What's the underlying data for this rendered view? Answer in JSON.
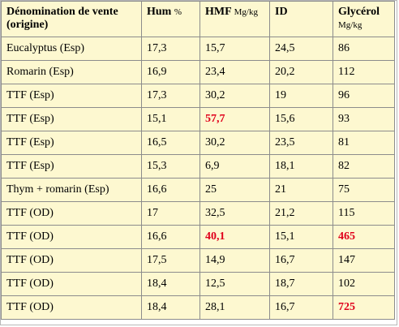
{
  "table": {
    "headers": {
      "denomination": "Dénomination de vente (origine)",
      "hum": "Hum",
      "hum_unit": "%",
      "hmf": "HMF",
      "hmf_unit": "Mg/kg",
      "id": "ID",
      "glycerol": "Glycérol",
      "glycerol_unit": "Mg/kg"
    },
    "highlight_color": "#e0001b",
    "rows": [
      {
        "name": "Eucalyptus (Esp)",
        "hum": "17,3",
        "hmf": "15,7",
        "id": "24,5",
        "glycerol": "86",
        "hmf_highlight": false,
        "glycerol_highlight": false
      },
      {
        "name": "Romarin (Esp)",
        "hum": "16,9",
        "hmf": "23,4",
        "id": "20,2",
        "glycerol": "112",
        "hmf_highlight": false,
        "glycerol_highlight": false
      },
      {
        "name": "TTF (Esp)",
        "hum": "17,3",
        "hmf": "30,2",
        "id": "19",
        "glycerol": "96",
        "hmf_highlight": false,
        "glycerol_highlight": false
      },
      {
        "name": "TTF (Esp)",
        "hum": "15,1",
        "hmf": "57,7",
        "id": "15,6",
        "glycerol": "93",
        "hmf_highlight": true,
        "glycerol_highlight": false
      },
      {
        "name": "TTF (Esp)",
        "hum": "16,5",
        "hmf": "30,2",
        "id": "23,5",
        "glycerol": "81",
        "hmf_highlight": false,
        "glycerol_highlight": false
      },
      {
        "name": "TTF (Esp)",
        "hum": "15,3",
        "hmf": "6,9",
        "id": "18,1",
        "glycerol": "82",
        "hmf_highlight": false,
        "glycerol_highlight": false
      },
      {
        "name": "Thym + romarin (Esp)",
        "hum": "16,6",
        "hmf": "25",
        "id": "21",
        "glycerol": "75",
        "hmf_highlight": false,
        "glycerol_highlight": false
      },
      {
        "name": "TTF (OD)",
        "hum": "17",
        "hmf": "32,5",
        "id": "21,2",
        "glycerol": "115",
        "hmf_highlight": false,
        "glycerol_highlight": false
      },
      {
        "name": "TTF (OD)",
        "hum": "16,6",
        "hmf": "40,1",
        "id": "15,1",
        "glycerol": "465",
        "hmf_highlight": true,
        "glycerol_highlight": true
      },
      {
        "name": "TTF (OD)",
        "hum": "17,5",
        "hmf": "14,9",
        "id": "16,7",
        "glycerol": "147",
        "hmf_highlight": false,
        "glycerol_highlight": false
      },
      {
        "name": "TTF (OD)",
        "hum": "18,4",
        "hmf": "12,5",
        "id": "18,7",
        "glycerol": "102",
        "hmf_highlight": false,
        "glycerol_highlight": false
      },
      {
        "name": "TTF (OD)",
        "hum": "18,4",
        "hmf": "28,1",
        "id": "16,7",
        "glycerol": "725",
        "hmf_highlight": false,
        "glycerol_highlight": true
      }
    ]
  }
}
